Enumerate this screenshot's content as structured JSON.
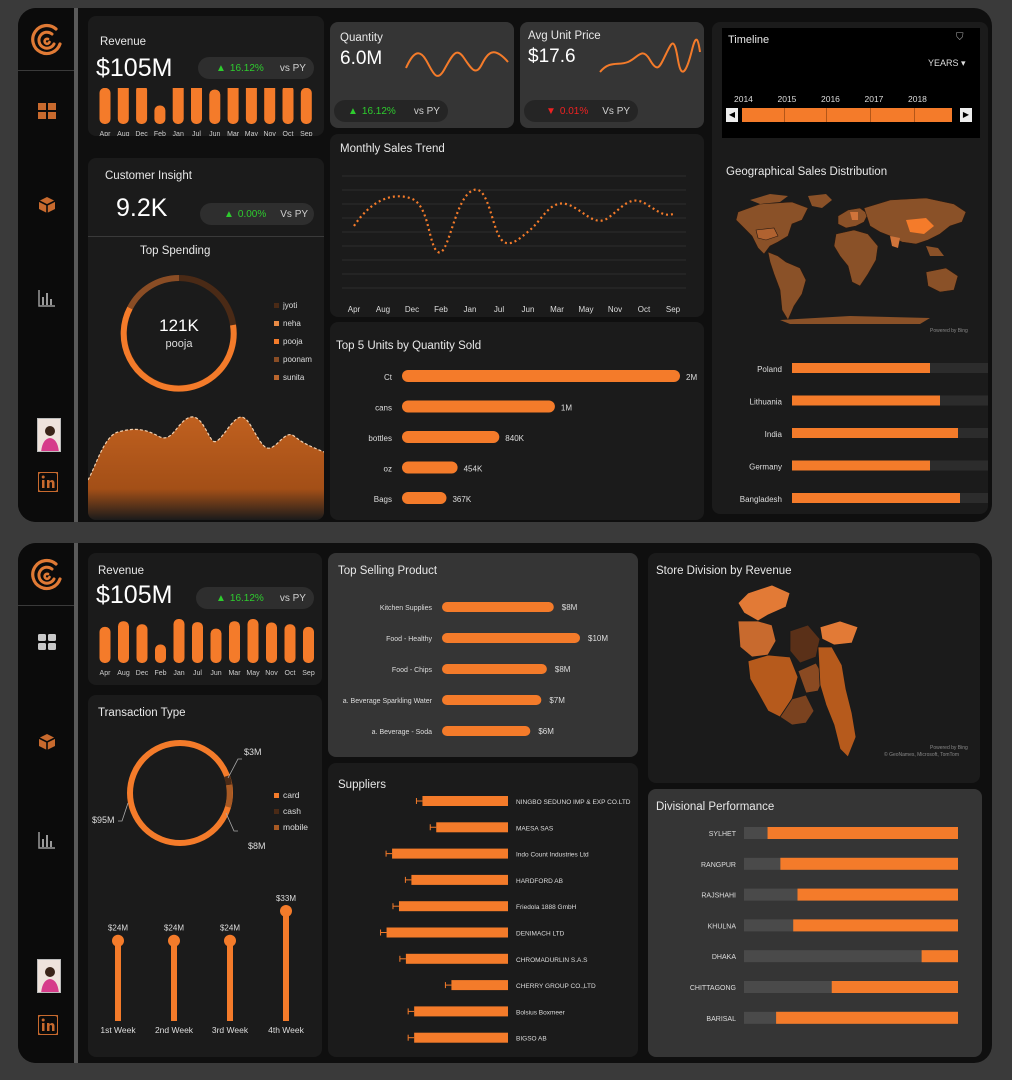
{
  "colors": {
    "accent": "#f47b2a",
    "accent_dark": "#b65a1c",
    "background": "#0f0f0f",
    "card": "#1b1b1b",
    "card_light": "#353535",
    "positive": "#2ecc2e",
    "negative": "#e22222"
  },
  "sidebar": {
    "icons": [
      "logo-icon",
      "dashboard-icon",
      "box-icon",
      "bar-chart-icon",
      "profile-photo",
      "linkedin-icon"
    ]
  },
  "dash1": {
    "revenue": {
      "title": "Revenue",
      "value": "$105M",
      "delta": "16.12%",
      "vs": "vs PY",
      "months": [
        "Apr",
        "Aug",
        "Dec",
        "Feb",
        "Jan",
        "Jul",
        "Jun",
        "Mar",
        "May",
        "Nov",
        "Oct",
        "Sep"
      ],
      "heights": [
        0.82,
        0.95,
        0.88,
        0.42,
        1.0,
        0.93,
        0.78,
        0.95,
        1.0,
        0.92,
        0.88,
        0.82
      ]
    },
    "quantity": {
      "title": "Quantity",
      "value": "6.0M",
      "delta": "16.12%",
      "vs": "vs PY"
    },
    "avg_price": {
      "title": "Avg Unit Price",
      "value": "$17.6",
      "delta": "0.01%",
      "vs": "Vs PY"
    },
    "customer": {
      "title": "Customer Insight",
      "value": "9.2K",
      "delta": "0.00%",
      "vs": "Vs PY"
    },
    "top_spending": {
      "title": "Top Spending",
      "center_value": "121K",
      "center_label": "pooja",
      "legend": [
        {
          "name": "jyoti",
          "color": "#4a2a16"
        },
        {
          "name": "neha",
          "color": "#e88a45"
        },
        {
          "name": "pooja",
          "color": "#f47b2a"
        },
        {
          "name": "poonam",
          "color": "#8a4d25"
        },
        {
          "name": "sunita",
          "color": "#b9662e"
        }
      ]
    },
    "monthly_trend": {
      "title": "Monthly Sales Trend",
      "months": [
        "Apr",
        "Aug",
        "Dec",
        "Feb",
        "Jan",
        "Jul",
        "Jun",
        "Mar",
        "May",
        "Nov",
        "Oct",
        "Sep"
      ]
    },
    "top_units": {
      "title": "Top 5 Units by Quantity Sold",
      "items": [
        {
          "label": "Ct",
          "value": "2M",
          "frac": 1.0
        },
        {
          "label": "cans",
          "value": "1M",
          "frac": 0.55
        },
        {
          "label": "bottles",
          "value": "840K",
          "frac": 0.35
        },
        {
          "label": "oz",
          "value": "454K",
          "frac": 0.2
        },
        {
          "label": "Bags",
          "value": "367K",
          "frac": 0.16
        }
      ]
    },
    "timeline": {
      "title": "Timeline",
      "unit": "YEARS",
      "years": [
        "2014",
        "2015",
        "2016",
        "2017",
        "2018"
      ]
    },
    "geo": {
      "title": "Geographical Sales Distribution",
      "credit": "Powered by Bing",
      "countries": [
        {
          "name": "Poland",
          "frac": 0.69
        },
        {
          "name": "Lithuania",
          "frac": 0.74
        },
        {
          "name": "India",
          "frac": 0.83
        },
        {
          "name": "Germany",
          "frac": 0.69
        },
        {
          "name": "Bangladesh",
          "frac": 0.84
        }
      ]
    }
  },
  "dash2": {
    "revenue": {
      "title": "Revenue",
      "value": "$105M",
      "delta": "16.12%",
      "vs": "vs PY",
      "months": [
        "Apr",
        "Aug",
        "Dec",
        "Feb",
        "Jan",
        "Jul",
        "Jun",
        "Mar",
        "May",
        "Nov",
        "Oct",
        "Sep"
      ],
      "heights": [
        0.82,
        0.95,
        0.88,
        0.42,
        1.0,
        0.93,
        0.78,
        0.95,
        1.0,
        0.92,
        0.88,
        0.82
      ]
    },
    "transaction": {
      "title": "Transaction Type",
      "labels": [
        "$3M",
        "$95M",
        "$8M"
      ],
      "legend": [
        {
          "name": "card",
          "color": "#f47b2a"
        },
        {
          "name": "cash",
          "color": "#4a2a16"
        },
        {
          "name": "mobile",
          "color": "#a85a24"
        }
      ],
      "weeks": [
        {
          "label": "1st Week",
          "value": "$24M",
          "frac": 0.73
        },
        {
          "label": "2nd Week",
          "value": "$24M",
          "frac": 0.73
        },
        {
          "label": "3rd Week",
          "value": "$24M",
          "frac": 0.73
        },
        {
          "label": "4th Week",
          "value": "$33M",
          "frac": 1.0
        }
      ]
    },
    "top_products": {
      "title": "Top Selling Product",
      "items": [
        {
          "label": "Kitchen Supplies",
          "value": "$8M",
          "frac": 0.81
        },
        {
          "label": "Food - Healthy",
          "value": "$10M",
          "frac": 1.0
        },
        {
          "label": "Food - Chips",
          "value": "$8M",
          "frac": 0.76
        },
        {
          "label": "a. Beverage Sparkling Water",
          "value": "$7M",
          "frac": 0.72
        },
        {
          "label": "a. Beverage - Soda",
          "value": "$6M",
          "frac": 0.64
        }
      ]
    },
    "suppliers": {
      "title": "Suppliers",
      "items": [
        {
          "label": "NINGBO SEDUNO IMP & EXP CO.LTD",
          "frac": 0.62
        },
        {
          "label": "MAESA SAS",
          "frac": 0.52
        },
        {
          "label": "Indo Count Industries Ltd",
          "frac": 0.84
        },
        {
          "label": "HARDFORD AB",
          "frac": 0.7
        },
        {
          "label": "Friedola 1888 GmbH",
          "frac": 0.79
        },
        {
          "label": "DENIMACH LTD",
          "frac": 0.88
        },
        {
          "label": "CHROMADURLIN S.A.S",
          "frac": 0.74
        },
        {
          "label": "CHERRY GROUP CO.,LTD",
          "frac": 0.41
        },
        {
          "label": "Bolsius Boxmeer",
          "frac": 0.68
        },
        {
          "label": "BIGSO AB",
          "frac": 0.68
        }
      ]
    },
    "store_division": {
      "title": "Store Division by Revenue",
      "credit1": "Powered by Bing",
      "credit2": "© GeoNames, Microsoft, TomTom"
    },
    "divisional": {
      "title": "Divisional Performance",
      "items": [
        {
          "name": "SYLHET",
          "frac": 0.89
        },
        {
          "name": "RANGPUR",
          "frac": 0.83
        },
        {
          "name": "RAJSHAHI",
          "frac": 0.75
        },
        {
          "name": "KHULNA",
          "frac": 0.77
        },
        {
          "name": "DHAKA",
          "frac": 0.17
        },
        {
          "name": "CHITTAGONG",
          "frac": 0.59
        },
        {
          "name": "BARISAL",
          "frac": 0.85
        }
      ]
    }
  }
}
